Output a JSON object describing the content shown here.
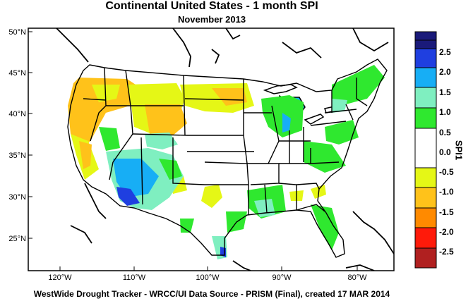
{
  "title": "Continental United States - 1 month SPI",
  "subtitle": "November 2013",
  "footer": "WestWide Drought Tracker - WRCC/UI  Data Source - PRISM (Final), created 17 MAR 2014",
  "colorbar": {
    "title": "SPI1",
    "labels": [
      "2.5",
      "2.0",
      "1.5",
      "1.0",
      "0.5",
      "0.0",
      "-0.5",
      "-1.0",
      "-1.5",
      "-2.0",
      "-2.5"
    ],
    "colors": [
      "#1a1a7a",
      "#1f3fe0",
      "#17aef5",
      "#7fefc0",
      "#2fe82f",
      "#ffffff",
      "#ffffff",
      "#e5f716",
      "#ffc21a",
      "#ff8a00",
      "#ff1a0a",
      "#b02020"
    ]
  },
  "axes": {
    "lat_ticks": [
      "50°N",
      "45°N",
      "40°N",
      "35°N",
      "30°N",
      "25°N"
    ],
    "lon_ticks": [
      "120°W",
      "110°W",
      "100°W",
      "90°W",
      "80°W"
    ]
  }
}
